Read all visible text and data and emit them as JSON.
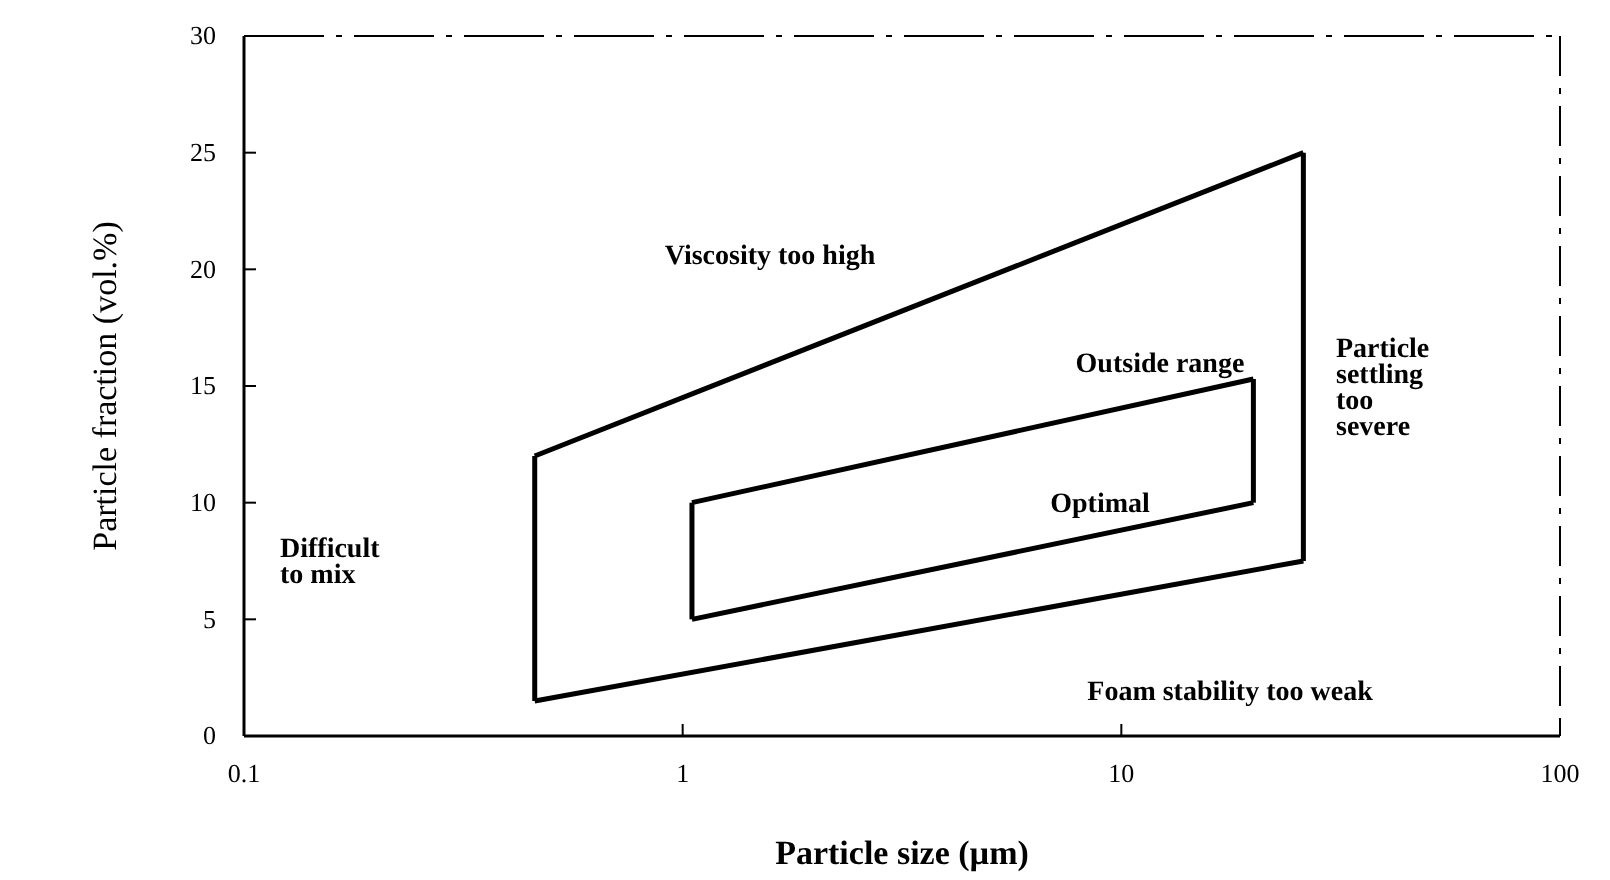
{
  "chart_data": {
    "type": "line",
    "xlabel": "Particle size (µm)",
    "ylabel": "Particle fraction (vol.%)",
    "log": "x",
    "xlim": [
      0.1,
      100
    ],
    "xticks": [
      0.1,
      1,
      10,
      100
    ],
    "ylim": [
      0,
      30
    ],
    "yticks": [
      0,
      5,
      10,
      15,
      20,
      25,
      30
    ],
    "grid": false,
    "marker": "none",
    "line_style": "solid",
    "series": [
      {
        "color": "#000000",
        "x": [
          0.46,
          26
        ],
        "values": [
          12,
          25
        ]
      },
      {
        "color": "#000000",
        "x": [
          0.46,
          26
        ],
        "values": [
          1.5,
          7.5
        ]
      },
      {
        "color": "#000000",
        "x": [
          0.46,
          0.46
        ],
        "values": [
          1.5,
          12
        ]
      },
      {
        "color": "#000000",
        "x": [
          26,
          26
        ],
        "values": [
          7.5,
          25
        ]
      },
      {
        "color": "#000000",
        "x": [
          1.05,
          20
        ],
        "values": [
          10,
          15.3
        ]
      },
      {
        "color": "#000000",
        "x": [
          1.05,
          20
        ],
        "values": [
          5,
          10
        ]
      },
      {
        "color": "#000000",
        "x": [
          1.05,
          1.05
        ],
        "values": [
          5,
          10
        ]
      },
      {
        "color": "#000000",
        "x": [
          20,
          20
        ],
        "values": [
          10,
          15.3
        ]
      }
    ],
    "annotations": [
      "Viscosity too high",
      "Outside range",
      "Optimal",
      "Particle\nsettling\ntoo\nsevere",
      "Difficult\nto mix",
      "Foam stability too weak"
    ]
  }
}
